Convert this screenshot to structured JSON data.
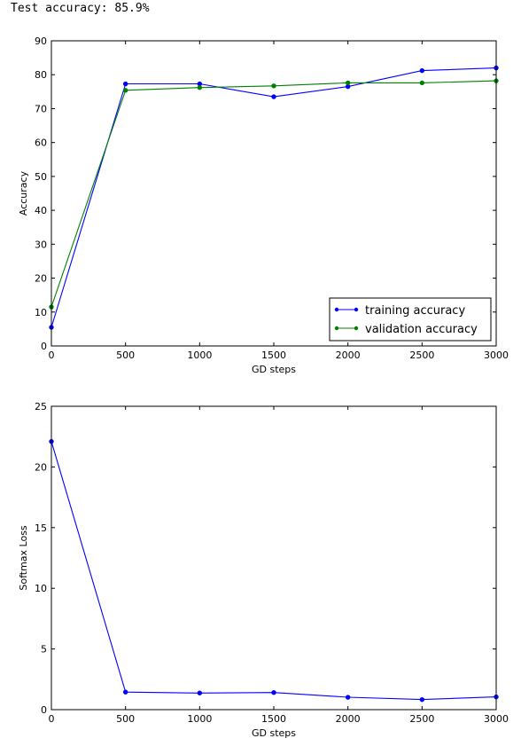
{
  "output": {
    "text": "Test accuracy: 85.9%"
  },
  "chart_data": [
    {
      "type": "line",
      "title": "",
      "xlabel": "GD steps",
      "ylabel": "Accuracy",
      "xlim": [
        0,
        3000
      ],
      "ylim": [
        0,
        90
      ],
      "xticks": [
        0,
        500,
        1000,
        1500,
        2000,
        2500,
        3000
      ],
      "yticks": [
        0,
        10,
        20,
        30,
        40,
        50,
        60,
        70,
        80,
        90
      ],
      "grid": false,
      "legend": "lower-right",
      "x": [
        0,
        500,
        1000,
        1500,
        2000,
        2500,
        3000
      ],
      "series": [
        {
          "name": "training accuracy",
          "color": "#0000ff",
          "values": [
            5.5,
            77.3,
            77.3,
            73.5,
            76.5,
            81.2,
            82.0
          ]
        },
        {
          "name": "validation accuracy",
          "color": "#008000",
          "values": [
            11.5,
            75.4,
            76.2,
            76.7,
            77.6,
            77.6,
            78.2
          ]
        }
      ]
    },
    {
      "type": "line",
      "title": "",
      "xlabel": "GD steps",
      "ylabel": "Softmax Loss",
      "xlim": [
        0,
        3000
      ],
      "ylim": [
        0,
        25
      ],
      "xticks": [
        0,
        500,
        1000,
        1500,
        2000,
        2500,
        3000
      ],
      "yticks": [
        0,
        5,
        10,
        15,
        20,
        25
      ],
      "grid": false,
      "legend": "none",
      "x": [
        0,
        500,
        1000,
        1500,
        2000,
        2500,
        3000
      ],
      "series": [
        {
          "color": "#0000ff",
          "values": [
            22.1,
            1.45,
            1.37,
            1.41,
            1.02,
            0.83,
            1.05
          ]
        }
      ]
    }
  ]
}
